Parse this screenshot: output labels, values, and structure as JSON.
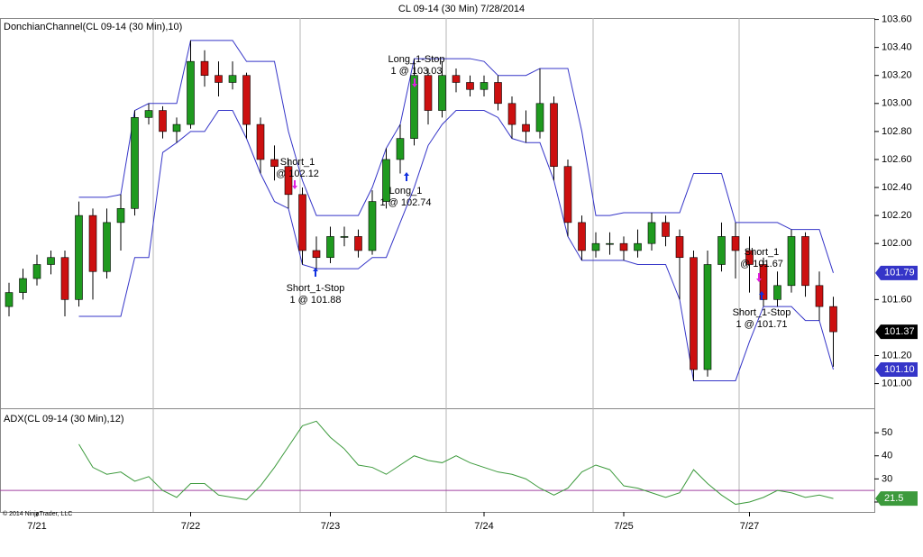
{
  "chart_data": [
    {
      "type": "candlestick",
      "title": "CL 09-14 (30 Min)  7/28/2014",
      "label": "DonchianChannel(CL 09-14 (30 Min),10)",
      "open": [
        101.55,
        101.65,
        101.75,
        101.85,
        101.9,
        101.6,
        102.2,
        101.8,
        102.15,
        102.25,
        102.9,
        102.95,
        102.8,
        102.85,
        103.3,
        103.2,
        103.15,
        103.2,
        102.85,
        102.6,
        102.55,
        102.35,
        101.95,
        101.9,
        102.05,
        102.05,
        101.95,
        102.3,
        102.6,
        102.75,
        103.2,
        102.95,
        103.2,
        103.15,
        103.1,
        103.15,
        103.0,
        102.85,
        102.8,
        103.0,
        102.55,
        102.15,
        101.95,
        102.0,
        102.0,
        101.95,
        102.0,
        102.15,
        102.05,
        101.9,
        101.1,
        101.85,
        102.05,
        101.95,
        101.85,
        101.6,
        101.7,
        102.05,
        101.7,
        101.55
      ],
      "high": [
        101.72,
        101.82,
        101.92,
        101.95,
        101.95,
        102.3,
        102.25,
        102.25,
        102.35,
        102.95,
        103.0,
        102.98,
        102.9,
        103.45,
        103.38,
        103.3,
        103.3,
        103.22,
        102.9,
        102.7,
        102.6,
        102.4,
        102.05,
        102.12,
        102.12,
        102.1,
        102.38,
        102.68,
        102.85,
        103.32,
        103.25,
        103.3,
        103.25,
        103.2,
        103.2,
        103.2,
        103.05,
        102.95,
        103.25,
        103.05,
        102.6,
        102.2,
        102.08,
        102.08,
        102.05,
        102.1,
        102.22,
        102.2,
        102.1,
        101.95,
        101.95,
        102.15,
        102.15,
        102.05,
        101.9,
        101.8,
        102.1,
        102.08,
        101.8,
        101.62
      ],
      "low": [
        101.48,
        101.6,
        101.7,
        101.78,
        101.48,
        101.55,
        101.6,
        101.75,
        101.95,
        102.2,
        102.85,
        102.75,
        102.72,
        102.82,
        103.12,
        103.05,
        103.1,
        102.75,
        102.5,
        102.45,
        102.25,
        101.85,
        101.82,
        101.86,
        101.98,
        101.9,
        101.92,
        102.25,
        102.5,
        102.7,
        102.85,
        102.9,
        103.08,
        103.05,
        103.05,
        102.95,
        102.75,
        102.72,
        102.75,
        102.45,
        102.05,
        101.88,
        101.9,
        101.92,
        101.88,
        101.9,
        101.95,
        101.98,
        101.6,
        101.02,
        101.05,
        101.8,
        101.75,
        101.65,
        101.55,
        101.55,
        101.65,
        101.62,
        101.45,
        101.12
      ],
      "close": [
        101.65,
        101.75,
        101.85,
        101.9,
        101.6,
        102.2,
        101.8,
        102.15,
        102.25,
        102.9,
        102.95,
        102.8,
        102.85,
        103.3,
        103.2,
        103.15,
        103.2,
        102.85,
        102.6,
        102.55,
        102.35,
        101.95,
        101.9,
        102.05,
        102.05,
        101.95,
        102.3,
        102.6,
        102.75,
        103.2,
        102.95,
        103.2,
        103.15,
        103.1,
        103.15,
        103.0,
        102.85,
        102.8,
        103.0,
        102.55,
        102.15,
        101.95,
        102.0,
        102.0,
        101.95,
        102.0,
        102.15,
        102.05,
        101.9,
        101.1,
        101.85,
        102.05,
        101.95,
        101.85,
        101.6,
        101.7,
        102.05,
        101.7,
        101.55,
        101.37
      ],
      "up_color": "#1f9a1f",
      "down_color": "#cc1010",
      "last_color": "#000000",
      "series": [
        {
          "color": "#3535c8",
          "values": [
            null,
            null,
            null,
            null,
            null,
            102.33,
            102.33,
            102.33,
            102.35,
            102.95,
            103.0,
            103.0,
            103.0,
            103.45,
            103.45,
            103.45,
            103.45,
            103.3,
            103.3,
            103.3,
            102.8,
            102.45,
            102.2,
            102.2,
            102.2,
            102.2,
            102.4,
            102.68,
            102.85,
            103.32,
            103.32,
            103.32,
            103.32,
            103.32,
            103.3,
            103.2,
            103.2,
            103.2,
            103.25,
            103.25,
            103.25,
            102.8,
            102.2,
            102.2,
            102.22,
            102.22,
            102.22,
            102.22,
            102.22,
            102.5,
            102.5,
            102.5,
            102.15,
            102.15,
            102.15,
            102.15,
            102.1,
            102.1,
            102.1,
            101.79
          ]
        },
        {
          "color": "#3535c8",
          "values": [
            null,
            null,
            null,
            null,
            null,
            101.48,
            101.48,
            101.48,
            101.48,
            101.9,
            101.9,
            102.65,
            102.72,
            102.8,
            102.8,
            102.95,
            102.95,
            102.75,
            102.5,
            102.3,
            102.25,
            101.85,
            101.82,
            101.82,
            101.82,
            101.82,
            101.9,
            101.9,
            102.15,
            102.4,
            102.7,
            102.85,
            102.95,
            102.95,
            102.95,
            102.9,
            102.75,
            102.72,
            102.72,
            102.45,
            102.05,
            101.88,
            101.88,
            101.88,
            101.88,
            101.85,
            101.85,
            101.85,
            101.6,
            101.02,
            101.02,
            101.02,
            101.02,
            101.3,
            101.55,
            101.55,
            101.55,
            101.45,
            101.45,
            101.1
          ],
          "value_labels": [
            null,
            null,
            null,
            null,
            null,
            null,
            null,
            null,
            null,
            null,
            null,
            null,
            null,
            null,
            null,
            null,
            null,
            null,
            null,
            null,
            null,
            null,
            null,
            null,
            null,
            null,
            null,
            null,
            null,
            null,
            null,
            null,
            null,
            null,
            null,
            null,
            null,
            null,
            null,
            null,
            null,
            null,
            null,
            null,
            null,
            null,
            null,
            null,
            null,
            null,
            null,
            null,
            null,
            null,
            null,
            null,
            null,
            null,
            null,
            "101.10"
          ]
        }
      ],
      "ylim": [
        100.83,
        103.61
      ],
      "yticks": [
        {
          "value": 101.0,
          "label": "101.00"
        },
        {
          "value": 101.2,
          "label": "101.20"
        },
        {
          "value": 101.6,
          "label": "101.60"
        },
        {
          "value": 102.0,
          "label": "102.00"
        },
        {
          "value": 102.2,
          "label": "102.20"
        },
        {
          "value": 102.4,
          "label": "102.40"
        },
        {
          "value": 102.6,
          "label": "102.60"
        },
        {
          "value": 102.8,
          "label": "102.80"
        },
        {
          "value": 103.0,
          "label": "103.00"
        },
        {
          "value": 103.2,
          "label": "103.20"
        },
        {
          "value": 103.4,
          "label": "103.40"
        },
        {
          "value": 103.6,
          "label": "103.60"
        }
      ],
      "annotations": [
        {
          "lines": [
            "Short_1",
            "@ 102.12"
          ]
        },
        {
          "lines": [
            "Long_1-Stop",
            "1 @ 103.03"
          ]
        },
        {
          "lines": [
            "Short_1-Stop",
            "1 @ 101.88"
          ]
        },
        {
          "lines": [
            "Long_1",
            "1 @ 102.74"
          ]
        },
        {
          "lines": [
            "Short_1",
            "@ 101.67"
          ]
        },
        {
          "lines": [
            "Short_1-Stop",
            "1 @ 101.71"
          ]
        }
      ]
    },
    {
      "type": "line",
      "label": "ADX(CL 09-14 (30 Min),12)",
      "copyright": "© 2014 NinjaTrader, LLC",
      "categories": [
        null,
        null,
        "7/21",
        null,
        null,
        null,
        null,
        null,
        null,
        null,
        null,
        null,
        null,
        "7/22",
        null,
        null,
        null,
        null,
        null,
        null,
        null,
        null,
        null,
        "7/23",
        null,
        null,
        null,
        null,
        null,
        null,
        null,
        null,
        null,
        null,
        "7/24",
        null,
        null,
        null,
        null,
        null,
        null,
        null,
        null,
        null,
        "7/25",
        null,
        null,
        null,
        null,
        null,
        null,
        null,
        null,
        "7/27",
        null,
        null,
        null,
        null,
        null,
        null
      ],
      "values": [
        null,
        null,
        null,
        null,
        null,
        45,
        35,
        32,
        33,
        29,
        31,
        25,
        22,
        28,
        28,
        23,
        22,
        21,
        27,
        35,
        44,
        53,
        55,
        48,
        43,
        36,
        35,
        32,
        36,
        40,
        38,
        37,
        40,
        37,
        35,
        33,
        32,
        30,
        26,
        23,
        26,
        33,
        36,
        34,
        27,
        26,
        24,
        22,
        24,
        34,
        28,
        23,
        19,
        20,
        22,
        25,
        24,
        22,
        23,
        21.5
      ],
      "color": "#3c9a3c",
      "level": 25,
      "level_color": "#a040a0",
      "ylim": [
        15.7,
        59.8
      ],
      "yticks": [
        20,
        30,
        40,
        50
      ]
    }
  ]
}
